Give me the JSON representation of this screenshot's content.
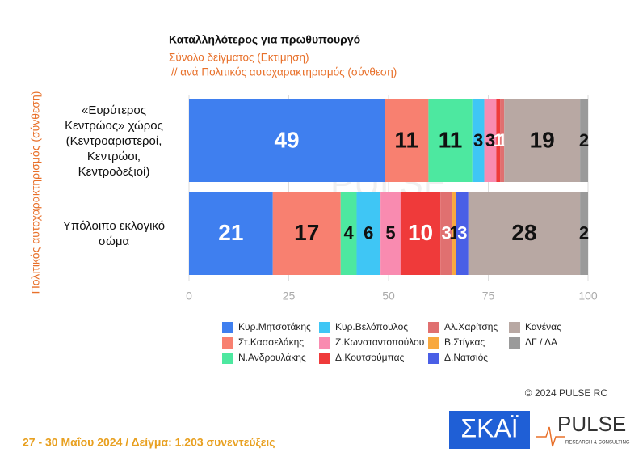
{
  "chart_data": {
    "type": "stacked-barh",
    "title": "Καταλληλότερος για πρωθυπουργό",
    "subtitle": [
      "Σύνολο δείγματος   (Εκτίμηση)",
      "// ανά Πολιτικός αυτοχαρακτηρισμός (σύνθεση)"
    ],
    "y_label": "Πολιτικός αυτοχαρακτηρισμός (σύνθεση)",
    "watermark": "PULSE",
    "categories": [
      "«Ευρύτερος Κεντρώος» χώρος (Κεντροαριστεροί, Κεντρώοι, Κεντροδεξιοί)",
      "Υπόλοιπο εκλογικό σώμα"
    ],
    "series": [
      {
        "name": "Κυρ.Μητσοτάκης",
        "color": "#3f7fef",
        "values": [
          49,
          21
        ]
      },
      {
        "name": "Στ.Κασσελάκης",
        "color": "#f88070",
        "values": [
          11,
          17
        ]
      },
      {
        "name": "Ν.Ανδρουλάκης",
        "color": "#4de8a0",
        "values": [
          11,
          4
        ]
      },
      {
        "name": "Κυρ.Βελόπουλος",
        "color": "#3fc6f5",
        "values": [
          3,
          6
        ]
      },
      {
        "name": "Ζ.Κωνσταντοπούλου",
        "color": "#f98bb0",
        "values": [
          3,
          5
        ]
      },
      {
        "name": "Δ.Κουτσούμπας",
        "color": "#ef3a3a",
        "values": [
          1,
          10
        ]
      },
      {
        "name": "Αλ.Χαρίτσης",
        "color": "#e07070",
        "values": [
          1,
          3
        ]
      },
      {
        "name": "Β.Στίγκας",
        "color": "#f8a83f",
        "values": [
          0,
          1
        ]
      },
      {
        "name": "Δ.Νατσιός",
        "color": "#4a5fe6",
        "values": [
          0,
          3
        ]
      },
      {
        "name": "Κανένας",
        "color": "#b8a8a3",
        "values": [
          19,
          28
        ]
      },
      {
        "name": "ΔΓ / ΔΑ",
        "color": "#9a9a9a",
        "values": [
          2,
          2
        ]
      }
    ],
    "xlim": [
      0,
      100
    ],
    "xticks": [
      0,
      25,
      50,
      75,
      100
    ],
    "grid": true,
    "copyright": "© 2024 PULSE RC",
    "footer": "27 - 30  Μαΐου 2024  /  Δείγμα:  1.203 συνεντεύξεις",
    "logos": [
      "ΣΚΑΪ",
      "PULSE",
      "RESEARCH & CONSULTING"
    ]
  }
}
